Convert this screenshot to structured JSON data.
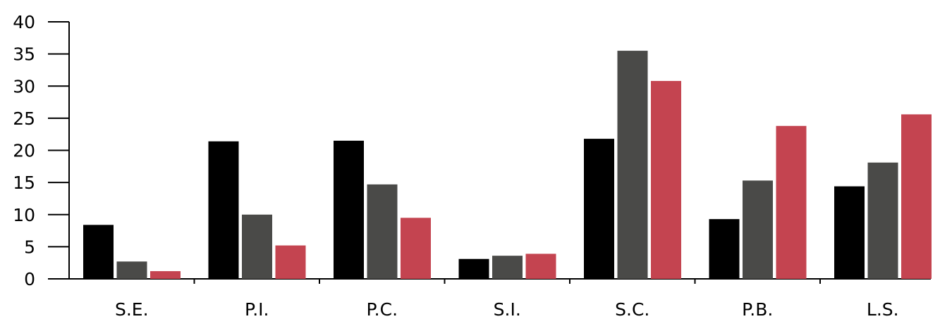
{
  "chart_data": {
    "type": "bar",
    "categories": [
      "S.E.",
      "P.I.",
      "P.C.",
      "S.I.",
      "S.C.",
      "P.B.",
      "L.S."
    ],
    "series": [
      {
        "values": [
          8.4,
          21.4,
          21.5,
          3.1,
          21.8,
          9.3,
          14.4
        ],
        "color": "#000000"
      },
      {
        "values": [
          2.7,
          10.0,
          14.7,
          3.6,
          35.5,
          15.3,
          18.1
        ],
        "color": "#4a4a48"
      },
      {
        "values": [
          1.2,
          5.2,
          9.5,
          3.9,
          30.8,
          23.8,
          25.6
        ],
        "color": "#c44450"
      }
    ],
    "y_ticks": [
      "0",
      "5",
      "10",
      "15",
      "20",
      "25",
      "30",
      "35",
      "40"
    ],
    "ylim": [
      0,
      40
    ],
    "grid": false,
    "legend": "none"
  }
}
